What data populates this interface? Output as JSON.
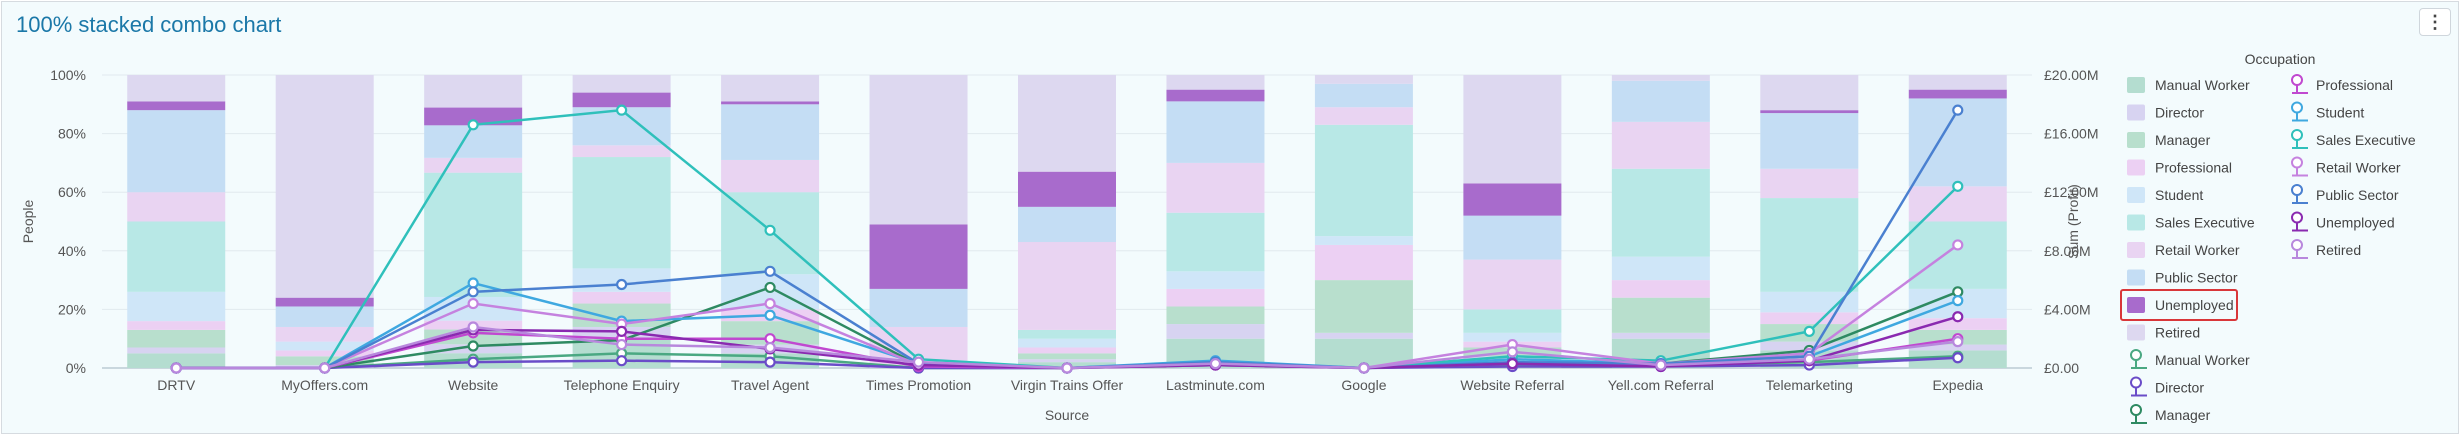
{
  "title": "100% stacked combo chart",
  "icons": {
    "menu": "more-vertical-icon"
  },
  "chart_data": {
    "type": "combo",
    "x_title": "Source",
    "y_title": "People",
    "y2_title": "Sum (Profit)",
    "categories": [
      "DRTV",
      "MyOffers.com",
      "Website",
      "Telephone Enquiry",
      "Travel Agent",
      "Times Promotion",
      "Virgin Trains Offer",
      "Lastminute.com",
      "Google",
      "Website Referral",
      "Yell.com Referral",
      "Telemarketing",
      "Expedia"
    ],
    "y_ticks": [
      "0%",
      "20%",
      "40%",
      "60%",
      "80%",
      "100%"
    ],
    "y_ticks_values": [
      0,
      20,
      40,
      60,
      80,
      100
    ],
    "y2_ticks": [
      "£0.00",
      "£4.00M",
      "£8.00M",
      "£12.00M",
      "£16.00M",
      "£20.00M"
    ],
    "y2_ticks_values": [
      0,
      4,
      8,
      12,
      16,
      20
    ],
    "y2_unit": "£M",
    "legend_title": "Occupation",
    "legend_position": "right",
    "highlighted_legend_item": "Unemployed",
    "bar_series": [
      {
        "name": "Manual Worker",
        "color": "#b4ddd0",
        "values": [
          5,
          0,
          5,
          10,
          5,
          0,
          2,
          10,
          10,
          2,
          10,
          6,
          6
        ]
      },
      {
        "name": "Director",
        "color": "#d7d3f1",
        "values": [
          2,
          1,
          3,
          4,
          3,
          0,
          1,
          5,
          2,
          2,
          2,
          3,
          2
        ]
      },
      {
        "name": "Manager",
        "color": "#b8dfcd",
        "values": [
          6,
          3,
          5,
          8,
          8,
          0,
          2,
          6,
          18,
          3,
          12,
          6,
          5
        ]
      },
      {
        "name": "Professional",
        "color": "#ecd0f3",
        "values": [
          3,
          2,
          3,
          4,
          4,
          1,
          2,
          6,
          12,
          2,
          6,
          4,
          4
        ]
      },
      {
        "name": "Student",
        "color": "#cfe6f8",
        "values": [
          10,
          3,
          8,
          8,
          12,
          0,
          3,
          6,
          3,
          3,
          8,
          7,
          10
        ]
      },
      {
        "name": "Sales Executive",
        "color": "#b8e8e6",
        "values": [
          24,
          0,
          42,
          38,
          28,
          0,
          3,
          20,
          38,
          8,
          30,
          32,
          23
        ]
      },
      {
        "name": "Retail Worker",
        "color": "#e9d4f2",
        "values": [
          10,
          5,
          5,
          4,
          11,
          13,
          30,
          17,
          6,
          17,
          16,
          10,
          12
        ]
      },
      {
        "name": "Public Sector",
        "color": "#c4ddf4",
        "values": [
          28,
          7,
          11,
          13,
          19,
          13,
          12,
          21,
          8,
          15,
          14,
          19,
          30
        ]
      },
      {
        "name": "Unemployed",
        "color": "#a86bcc",
        "values": [
          3,
          3,
          6,
          5,
          1,
          22,
          12,
          4,
          0,
          11,
          0,
          1,
          3
        ]
      },
      {
        "name": "Retired",
        "color": "#ddd8f0",
        "values": [
          9,
          76,
          11,
          6,
          9,
          51,
          33,
          5,
          3,
          37,
          2,
          12,
          5
        ]
      }
    ],
    "line_series": [
      {
        "name": "Manual Worker",
        "color": "#4aa882",
        "values": [
          0,
          0,
          0.6,
          1.0,
          0.8,
          0,
          0,
          0.2,
          0,
          0.2,
          0.2,
          0.4,
          0.8
        ]
      },
      {
        "name": "Director",
        "color": "#6a4cc8",
        "values": [
          0,
          0,
          0.4,
          0.5,
          0.4,
          0,
          0,
          0.3,
          0,
          0.1,
          0.1,
          0.2,
          0.7
        ]
      },
      {
        "name": "Manager",
        "color": "#2e8a62",
        "values": [
          0,
          0,
          1.5,
          1.9,
          5.5,
          0.2,
          0,
          0.4,
          0,
          0.3,
          0.3,
          1.2,
          5.2
        ]
      },
      {
        "name": "Professional",
        "color": "#c048d0",
        "values": [
          0,
          0,
          2.4,
          2.0,
          2.0,
          0.1,
          0,
          0.2,
          0,
          0.3,
          0.2,
          0.5,
          2.0
        ]
      },
      {
        "name": "Student",
        "color": "#3fa8e0",
        "values": [
          0,
          0,
          5.8,
          3.2,
          3.6,
          0.3,
          0,
          0.5,
          0,
          0.6,
          0.3,
          0.8,
          4.6
        ]
      },
      {
        "name": "Sales Executive",
        "color": "#2fc0bb",
        "values": [
          0,
          0,
          16.6,
          17.6,
          9.4,
          0.6,
          0,
          0.3,
          0,
          0.8,
          0.5,
          2.5,
          12.4
        ]
      },
      {
        "name": "Retail Worker",
        "color": "#c582df",
        "values": [
          0,
          0,
          4.4,
          3.0,
          4.4,
          0.2,
          0,
          0.3,
          0,
          1.6,
          0.3,
          1.0,
          8.4
        ]
      },
      {
        "name": "Public Sector",
        "color": "#4a80d0",
        "values": [
          0,
          0,
          5.2,
          5.7,
          6.6,
          0.3,
          0,
          0.4,
          0,
          0.4,
          0.3,
          0.8,
          17.6
        ]
      },
      {
        "name": "Unemployed",
        "color": "#8a2ab0",
        "values": [
          0,
          0,
          2.6,
          2.5,
          1.3,
          0.2,
          0,
          0.2,
          0,
          0.3,
          0.1,
          0.5,
          3.5
        ]
      },
      {
        "name": "Retired",
        "color": "#b888dd",
        "values": [
          0,
          0,
          2.8,
          1.6,
          1.4,
          0.4,
          0,
          0.3,
          0,
          1.1,
          0.2,
          0.6,
          1.8
        ]
      }
    ]
  }
}
